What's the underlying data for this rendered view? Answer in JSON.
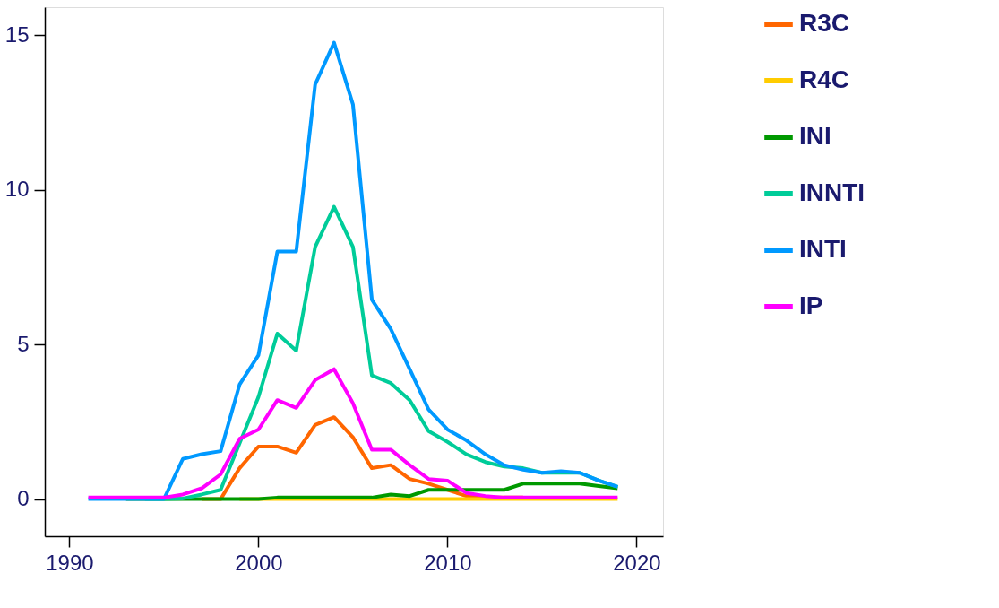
{
  "chart_data": {
    "type": "line",
    "x": [
      1991,
      1992,
      1993,
      1994,
      1995,
      1996,
      1997,
      1998,
      1999,
      2000,
      2001,
      2002,
      2003,
      2004,
      2005,
      2006,
      2007,
      2008,
      2009,
      2010,
      2011,
      2012,
      2013,
      2014,
      2015,
      2016,
      2017,
      2018,
      2019
    ],
    "series": [
      {
        "name": "R3C",
        "color": "#ff6600",
        "values": [
          null,
          null,
          null,
          null,
          null,
          null,
          0,
          0,
          1.0,
          1.7,
          1.7,
          1.5,
          2.4,
          2.65,
          2.0,
          1.0,
          1.1,
          0.65,
          0.5,
          0.3,
          0.1,
          0.05,
          0.05,
          0.05,
          null,
          null,
          null,
          null,
          null
        ]
      },
      {
        "name": "R4C",
        "color": "#ffcc00",
        "values": [
          null,
          null,
          null,
          null,
          null,
          null,
          null,
          null,
          0,
          0,
          0,
          0,
          0,
          0,
          0,
          0,
          0,
          0,
          0,
          0,
          0,
          0,
          0,
          0,
          0,
          0,
          0,
          0,
          0
        ]
      },
      {
        "name": "INI",
        "color": "#009900",
        "values": [
          null,
          null,
          0,
          0,
          0,
          0,
          0,
          0,
          0,
          0,
          0.05,
          0.05,
          0.05,
          0.05,
          0.05,
          0.05,
          0.15,
          0.1,
          0.3,
          0.3,
          0.3,
          0.3,
          0.3,
          0.5,
          0.5,
          0.5,
          0.5,
          0.42,
          0.35
        ]
      },
      {
        "name": "INNTI",
        "color": "#00cc99",
        "values": [
          null,
          null,
          null,
          0,
          0,
          0.02,
          0.15,
          0.3,
          1.8,
          3.3,
          5.35,
          4.8,
          8.15,
          9.45,
          8.15,
          4.0,
          3.75,
          3.2,
          2.2,
          1.85,
          1.45,
          1.2,
          1.05,
          1.0,
          0.85,
          0.85,
          0.85,
          0.6,
          0.4
        ]
      },
      {
        "name": "INTI",
        "color": "#0099ff",
        "values": [
          0,
          0,
          0,
          0,
          0,
          1.3,
          1.45,
          1.55,
          3.7,
          4.65,
          8.0,
          8.0,
          13.4,
          14.75,
          12.75,
          6.45,
          5.5,
          4.2,
          2.9,
          2.25,
          1.9,
          1.45,
          1.1,
          0.95,
          0.85,
          0.9,
          0.85,
          0.6,
          0.4
        ]
      },
      {
        "name": "IP",
        "color": "#ff00ff",
        "values": [
          0.05,
          0.05,
          0.05,
          0.05,
          0.05,
          0.15,
          0.35,
          0.8,
          1.95,
          2.25,
          3.2,
          2.95,
          3.85,
          4.2,
          3.1,
          1.6,
          1.6,
          1.1,
          0.65,
          0.6,
          0.2,
          0.1,
          0.05,
          0.05,
          0.05,
          0.05,
          0.05,
          0.05,
          0.05
        ]
      }
    ],
    "xlim": [
      1988.7,
      2021.4
    ],
    "xticks": [
      1990,
      2000,
      2010,
      2020
    ],
    "ylim": [
      -1.2,
      15.9
    ],
    "yticks": [
      0,
      5,
      10,
      15
    ],
    "grid": false,
    "legend": "right",
    "marker": "none",
    "line_style": "solid"
  }
}
